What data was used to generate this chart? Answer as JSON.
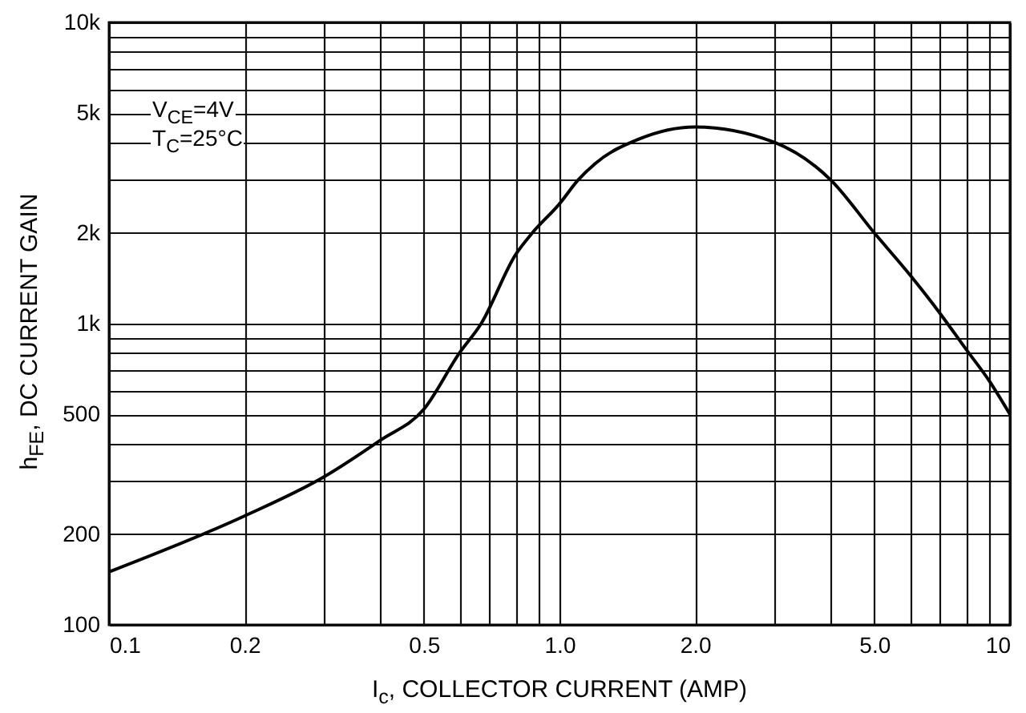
{
  "chart_data": {
    "type": "line",
    "xlabel": "I$_{c}$, COLLECTOR CURRENT (AMP)",
    "ylabel": "h$_{FE}$, DC CURRENT GAIN",
    "annotations": [
      "V$_{CE}$=4V",
      "T$_{C}$=25°C"
    ],
    "log": "xy",
    "grid": true,
    "marker": "none",
    "line_style": "solid",
    "xlim": [
      0.1,
      10
    ],
    "ylim": [
      100,
      10000
    ],
    "xticks": [
      0.1,
      0.2,
      {
        "value": 0.3,
        "label": null
      },
      {
        "value": 0.4,
        "label": null
      },
      0.5,
      {
        "value": 0.6,
        "label": null
      },
      {
        "value": 0.7,
        "label": null
      },
      {
        "value": 0.8,
        "label": null
      },
      {
        "value": 0.9,
        "label": null
      },
      {
        "value": 1,
        "label": "1.0"
      },
      {
        "value": 2,
        "label": "2.0"
      },
      {
        "value": 3,
        "label": null
      },
      {
        "value": 4,
        "label": null
      },
      {
        "value": 5,
        "label": "5.0"
      },
      {
        "value": 6,
        "label": null
      },
      {
        "value": 7,
        "label": null
      },
      {
        "value": 8,
        "label": null
      },
      {
        "value": 9,
        "label": null
      },
      10
    ],
    "yticks": [
      100,
      200,
      {
        "value": 300,
        "label": null
      },
      {
        "value": 400,
        "label": null
      },
      500,
      {
        "value": 600,
        "label": null
      },
      {
        "value": 700,
        "label": null
      },
      {
        "value": 800,
        "label": null
      },
      {
        "value": 900,
        "label": null
      },
      {
        "value": 1000,
        "label": "1k"
      },
      {
        "value": 2000,
        "label": "2k"
      },
      {
        "value": 3000,
        "label": null
      },
      {
        "value": 4000,
        "label": null
      },
      {
        "value": 5000,
        "label": "5k"
      },
      {
        "value": 6000,
        "label": null
      },
      {
        "value": 7000,
        "label": null
      },
      {
        "value": 8000,
        "label": null
      },
      {
        "value": 9000,
        "label": null
      },
      {
        "value": 10000,
        "label": "10k"
      }
    ],
    "series": [
      {
        "color": "#000000",
        "x": [
          0.1,
          0.2,
          0.3,
          0.4,
          0.5,
          0.6,
          0.67,
          0.8,
          0.87,
          1.0,
          1.1,
          1.2,
          1.5,
          2.0,
          3.0,
          4.0,
          5.0,
          6.0,
          7.0,
          8.0,
          9.0,
          10
        ],
        "values": [
          150,
          230,
          310,
          410,
          520,
          800,
          1000,
          1700,
          2000,
          2500,
          3000,
          3400,
          4100,
          4500,
          4000,
          3000,
          2000,
          1450,
          1080,
          820,
          645,
          500
        ]
      }
    ]
  }
}
